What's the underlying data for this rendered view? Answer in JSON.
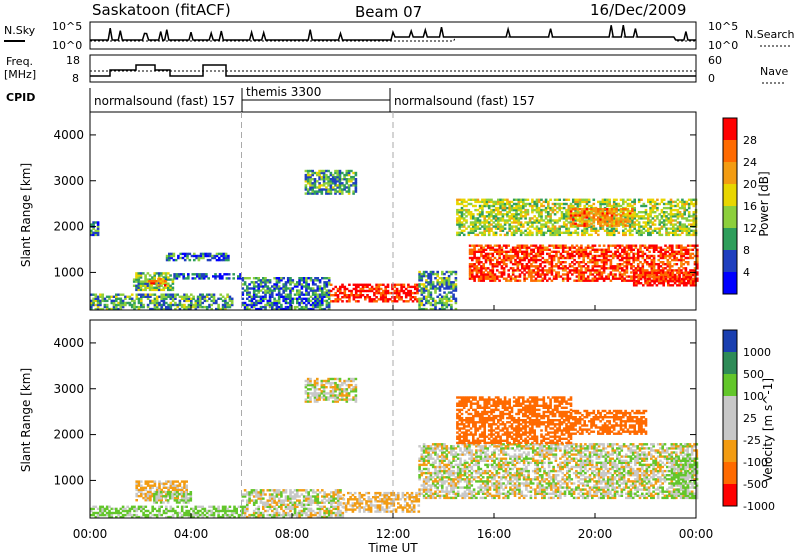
{
  "header": {
    "station": "Saskatoon (fitACF)",
    "beam": "Beam 07",
    "date": "16/Dec/2009"
  },
  "top_panels": {
    "nsky_label": "N.Sky",
    "nsky_ticks": [
      "10^5",
      "10^0"
    ],
    "nsearch_label": "N.Search",
    "nsearch_ticks": [
      "10^5",
      "10^0"
    ],
    "freq_label_1": "Freq.",
    "freq_label_2": "[MHz]",
    "freq_ticks": [
      "18",
      "8"
    ],
    "nave_label": "Nave",
    "nave_ticks": [
      "60",
      "0"
    ],
    "cpid_label": "CPID",
    "cpid_segments": [
      {
        "label": "normalsound (fast) 157",
        "start": 0,
        "end": 6
      },
      {
        "label": "themis 3300",
        "start": 6,
        "end": 12
      },
      {
        "label": "normalsound (fast) 157",
        "start": 12,
        "end": 24
      }
    ]
  },
  "time_axis": {
    "label": "Time UT",
    "ticks": [
      "00:00",
      "04:00",
      "08:00",
      "12:00",
      "16:00",
      "20:00",
      "00:00"
    ],
    "tick_hours": [
      0,
      4,
      8,
      12,
      16,
      20,
      24
    ]
  },
  "chart_data": [
    {
      "type": "heatmap",
      "title": "Power",
      "xlabel": "Time UT",
      "ylabel": "Slant Range [km]",
      "xlim": [
        0,
        24
      ],
      "ylim": [
        180,
        4500
      ],
      "yticks": [
        1000,
        2000,
        3000,
        4000
      ],
      "colorbar": {
        "label": "Power [dB]",
        "ticks": [
          "28",
          "24",
          "20",
          "16",
          "12",
          "8",
          "4"
        ],
        "colors": [
          "#ff0000",
          "#ff6a00",
          "#f39c12",
          "#e8d600",
          "#8ccf3c",
          "#2e9e5b",
          "#1f3fbf",
          "#0000ff"
        ]
      },
      "grid_hours": [
        6,
        12
      ],
      "echo_regions": [
        {
          "t": [
            0.0,
            0.3
          ],
          "r": [
            1800,
            2100
          ],
          "dB": 8
        },
        {
          "t": [
            0.0,
            5.6
          ],
          "r": [
            180,
            500
          ],
          "dB": 10
        },
        {
          "t": [
            1.7,
            3.3
          ],
          "r": [
            600,
            1000
          ],
          "dB": 12
        },
        {
          "t": [
            2.3,
            3.0
          ],
          "r": [
            700,
            850
          ],
          "dB": 22
        },
        {
          "t": [
            3.0,
            5.5
          ],
          "r": [
            1250,
            1400
          ],
          "dB": 8
        },
        {
          "t": [
            3.3,
            6.0
          ],
          "r": [
            850,
            950
          ],
          "dB": 6
        },
        {
          "t": [
            6.0,
            9.5
          ],
          "r": [
            180,
            900
          ],
          "dB": 8
        },
        {
          "t": [
            8.5,
            10.5
          ],
          "r": [
            2700,
            3200
          ],
          "dB": 10
        },
        {
          "t": [
            9.5,
            13.0
          ],
          "r": [
            350,
            750
          ],
          "dB": 28
        },
        {
          "t": [
            13.0,
            14.5
          ],
          "r": [
            180,
            1000
          ],
          "dB": 10
        },
        {
          "t": [
            14.5,
            24.0
          ],
          "r": [
            1800,
            2600
          ],
          "dB": 14
        },
        {
          "t": [
            15.0,
            24.0
          ],
          "r": [
            800,
            1600
          ],
          "dB": 26
        },
        {
          "t": [
            19.0,
            21.5
          ],
          "r": [
            2000,
            2400
          ],
          "dB": 22
        },
        {
          "t": [
            21.5,
            24.0
          ],
          "r": [
            700,
            1000
          ],
          "dB": 28
        }
      ]
    },
    {
      "type": "heatmap",
      "title": "Velocity",
      "xlabel": "Time UT",
      "ylabel": "Slant Range [km]",
      "xlim": [
        0,
        24
      ],
      "ylim": [
        180,
        4500
      ],
      "yticks": [
        1000,
        2000,
        3000,
        4000
      ],
      "colorbar": {
        "label": "Velocity [m s^-1]",
        "ticks": [
          "1000",
          "500",
          "100",
          "25",
          "-25",
          "-100",
          "-500",
          "-1000"
        ],
        "colors": [
          "#1a3fb0",
          "#2e8b57",
          "#62c62a",
          "#c8c8c8",
          "#c8c8c8",
          "#f39c12",
          "#ff6a00",
          "#ff0000"
        ]
      },
      "grid_hours": [
        6,
        12
      ],
      "echo_regions": [
        {
          "t": [
            0.0,
            6.0
          ],
          "r": [
            180,
            450
          ],
          "v": 100
        },
        {
          "t": [
            1.8,
            3.8
          ],
          "r": [
            550,
            1000
          ],
          "v": -100
        },
        {
          "t": [
            2.5,
            4.0
          ],
          "r": [
            500,
            750
          ],
          "v": 100
        },
        {
          "t": [
            6.0,
            10.0
          ],
          "r": [
            180,
            800
          ],
          "v": 0
        },
        {
          "t": [
            8.5,
            10.5
          ],
          "r": [
            2700,
            3200
          ],
          "v": 0
        },
        {
          "t": [
            10.0,
            13.0
          ],
          "r": [
            300,
            750
          ],
          "v": -100
        },
        {
          "t": [
            13.0,
            24.0
          ],
          "r": [
            600,
            1800
          ],
          "v": 0
        },
        {
          "t": [
            14.5,
            19.0
          ],
          "r": [
            1800,
            2800
          ],
          "v": -500
        },
        {
          "t": [
            19.0,
            22.0
          ],
          "r": [
            2000,
            2500
          ],
          "v": -500
        },
        {
          "t": [
            23.0,
            24.0
          ],
          "r": [
            600,
            1500
          ],
          "v": 100
        }
      ]
    }
  ]
}
